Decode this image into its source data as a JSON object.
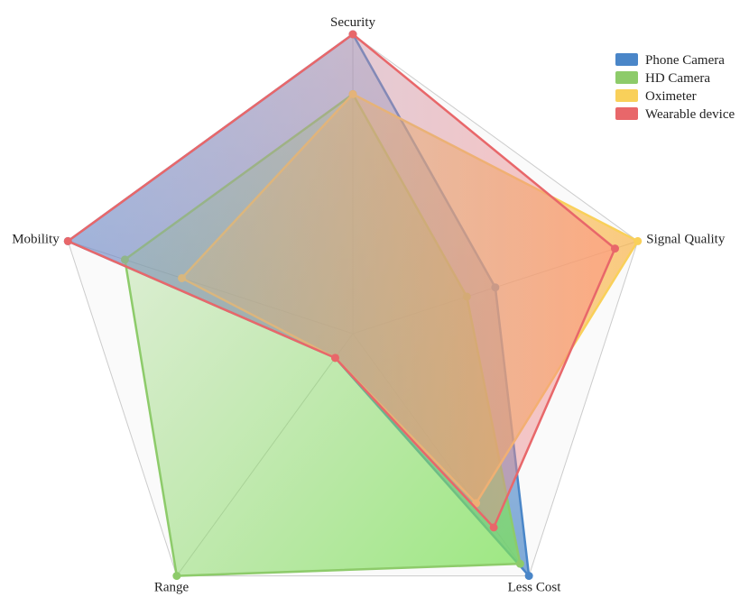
{
  "chart_data": {
    "type": "radar",
    "axes": [
      "Security",
      "Signal Quality",
      "Less Cost",
      "Range",
      "Mobility"
    ],
    "rlim": [
      0,
      5
    ],
    "grid": true,
    "legend_position": "top-right",
    "series": [
      {
        "name": "Phone Camera",
        "values": [
          5.0,
          2.5,
          5.0,
          0.5,
          5.0
        ],
        "color": "#4A86C8"
      },
      {
        "name": "HD Camera",
        "values": [
          4.0,
          2.0,
          4.75,
          5.0,
          4.0
        ],
        "color": "#8DCB6A"
      },
      {
        "name": "Oximeter",
        "values": [
          4.0,
          5.0,
          3.5,
          0.5,
          3.0
        ],
        "color": "#F9D05A"
      },
      {
        "name": "Wearable device",
        "values": [
          5.0,
          4.6,
          4.0,
          0.5,
          5.0
        ],
        "color": "#E8676A"
      }
    ]
  }
}
